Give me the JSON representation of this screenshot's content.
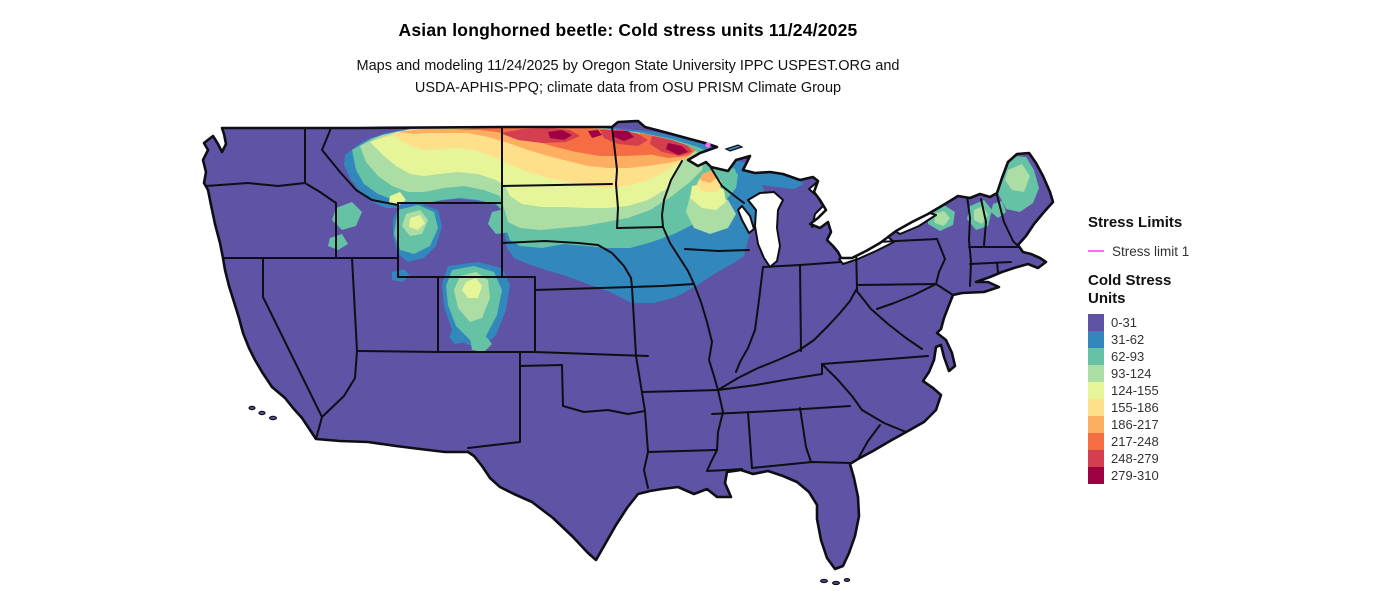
{
  "header": {
    "title": "Asian longhorned beetle: Cold stress units 11/24/2025",
    "subtitle_line1": "Maps and modeling 11/24/2025 by Oregon State University IPPC USPEST.ORG and",
    "subtitle_line2": "USDA-APHIS-PPQ; climate data from OSU PRISM Climate Group"
  },
  "legend": {
    "stress_limits_title": "Stress Limits",
    "stress_limit_label": "Stress limit 1",
    "stress_limit_color": "#fb6ef2",
    "cold_stress_title_line1": "Cold Stress",
    "cold_stress_title_line2": "Units",
    "classes": [
      {
        "label": "0-31",
        "color": "#5e53a4"
      },
      {
        "label": "31-62",
        "color": "#3288bd"
      },
      {
        "label": "62-93",
        "color": "#66c2a5"
      },
      {
        "label": "93-124",
        "color": "#abdda4"
      },
      {
        "label": "124-155",
        "color": "#e6f598"
      },
      {
        "label": "155-186",
        "color": "#fee08b"
      },
      {
        "label": "186-217",
        "color": "#fdae61"
      },
      {
        "label": "217-248",
        "color": "#f46d43"
      },
      {
        "label": "248-279",
        "color": "#d53e4f"
      },
      {
        "label": "279-310",
        "color": "#9e0142"
      }
    ],
    "border_color": "#0e0e14",
    "water_color": "#ffffff"
  }
}
